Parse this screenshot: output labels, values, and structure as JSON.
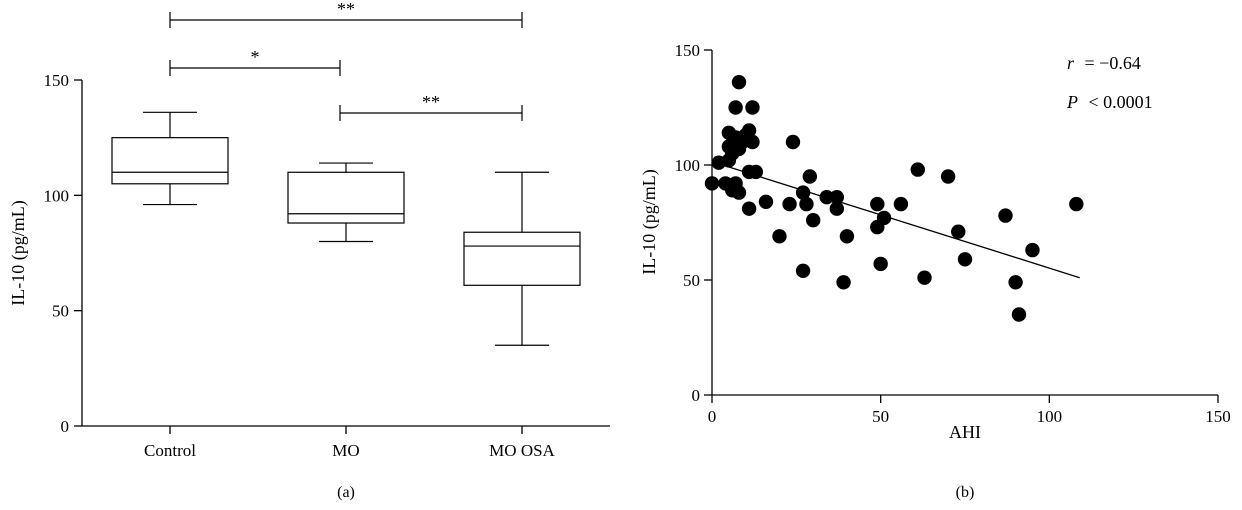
{
  "chart_data": [
    {
      "panel": "(a)",
      "type": "box",
      "ylabel": "IL-10 (pg/mL)",
      "ylim": [
        0,
        150
      ],
      "yticks": [
        "0",
        "50",
        "100",
        "150"
      ],
      "categories": [
        "Control",
        "MO",
        "MO OSA"
      ],
      "boxes": [
        {
          "name": "Control",
          "min": 96,
          "q1": 105,
          "median": 110,
          "q3": 125,
          "max": 136
        },
        {
          "name": "MO",
          "min": 80,
          "q1": 88,
          "median": 92,
          "q3": 110,
          "max": 114
        },
        {
          "name": "MO OSA",
          "min": 35,
          "q1": 61,
          "median": 78,
          "q3": 84,
          "max": 110
        }
      ],
      "comparisons": [
        {
          "from": "Control",
          "to": "MO OSA",
          "label": "**",
          "level": 3
        },
        {
          "from": "Control",
          "to": "MO",
          "label": "*",
          "level": 2
        },
        {
          "from": "MO",
          "to": "MO OSA",
          "label": "**",
          "level": 1
        }
      ]
    },
    {
      "panel": "(b)",
      "type": "scatter",
      "xlabel": "AHI",
      "ylabel": "IL-10 (pg/mL)",
      "xlim": [
        0,
        150
      ],
      "ylim": [
        0,
        150
      ],
      "xticks": [
        "0",
        "50",
        "100",
        "150"
      ],
      "yticks": [
        "0",
        "50",
        "100",
        "150"
      ],
      "annotations": {
        "r_label": "r",
        "r_value": "= −0.64",
        "p_label": "P",
        "p_value": "< 0.0001"
      },
      "regression_line": {
        "x": [
          1,
          109
        ],
        "y": [
          101,
          51
        ]
      },
      "points": [
        [
          0,
          92
        ],
        [
          2,
          101
        ],
        [
          4,
          92
        ],
        [
          5,
          102
        ],
        [
          5,
          114
        ],
        [
          5,
          108
        ],
        [
          6,
          105
        ],
        [
          6,
          109
        ],
        [
          6,
          89
        ],
        [
          7,
          112
        ],
        [
          7,
          125
        ],
        [
          7,
          92
        ],
        [
          8,
          136
        ],
        [
          8,
          107
        ],
        [
          8,
          88
        ],
        [
          9,
          110
        ],
        [
          10,
          113
        ],
        [
          10,
          112
        ],
        [
          11,
          115
        ],
        [
          11,
          97
        ],
        [
          11,
          81
        ],
        [
          12,
          110
        ],
        [
          12,
          125
        ],
        [
          13,
          97
        ],
        [
          16,
          84
        ],
        [
          20,
          69
        ],
        [
          23,
          83
        ],
        [
          24,
          110
        ],
        [
          27,
          88
        ],
        [
          27,
          54
        ],
        [
          28,
          83
        ],
        [
          29,
          95
        ],
        [
          30,
          76
        ],
        [
          34,
          86
        ],
        [
          37,
          86
        ],
        [
          37,
          81
        ],
        [
          39,
          49
        ],
        [
          40,
          69
        ],
        [
          49,
          83
        ],
        [
          49,
          73
        ],
        [
          50,
          57
        ],
        [
          51,
          77
        ],
        [
          56,
          83
        ],
        [
          61,
          98
        ],
        [
          63,
          51
        ],
        [
          70,
          95
        ],
        [
          73,
          71
        ],
        [
          75,
          59
        ],
        [
          87,
          78
        ],
        [
          90,
          49
        ],
        [
          91,
          35
        ],
        [
          95,
          63
        ],
        [
          108,
          83
        ]
      ]
    }
  ]
}
